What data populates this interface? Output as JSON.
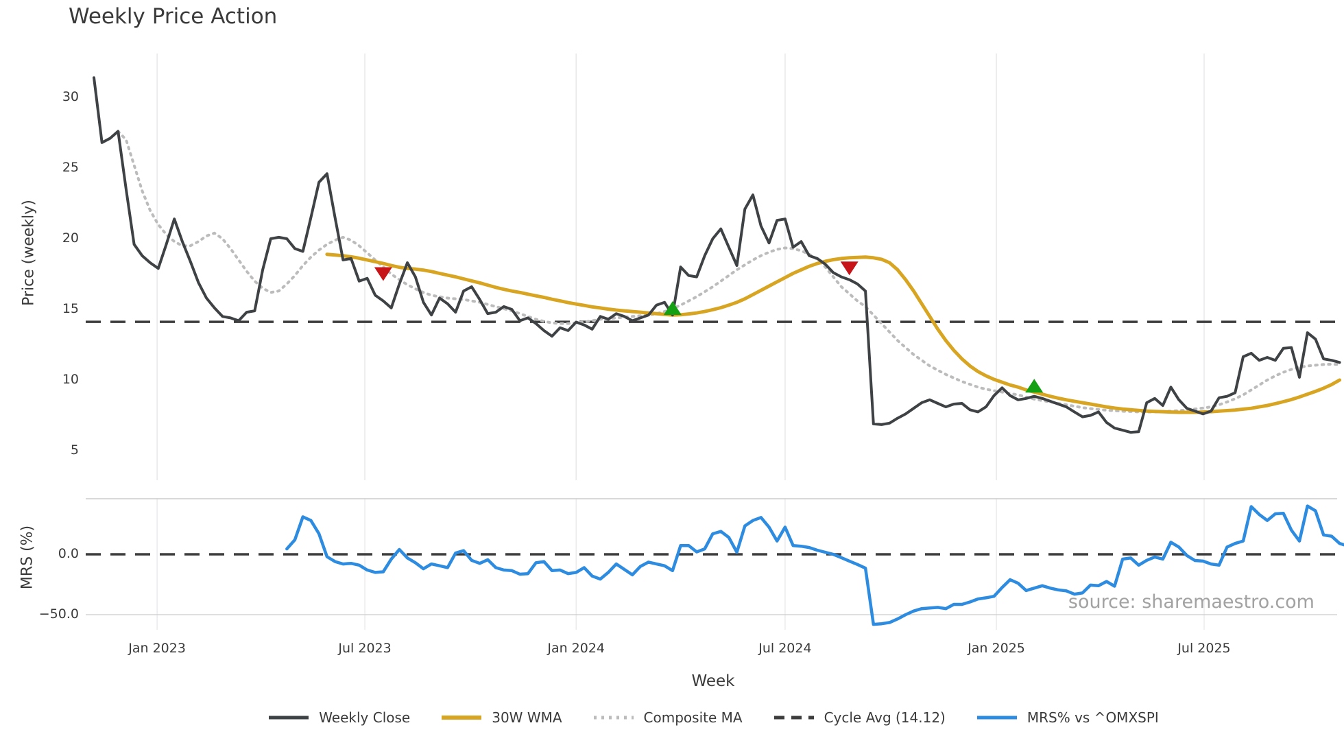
{
  "title": "Weekly Price Action",
  "source_note": "source: sharemaestro.com",
  "price_axis": {
    "label": "Price (weekly)",
    "ticks": [
      5,
      10,
      15,
      20,
      25,
      30
    ]
  },
  "mrs_axis": {
    "label": "MRS (%)",
    "ticks": [
      {
        "label": "0.0",
        "value": 0
      },
      {
        "label": "−50.0",
        "value": -50
      }
    ]
  },
  "x_axis": {
    "label": "Week",
    "ticks": [
      {
        "label": "Jan 2023",
        "week": 7.86
      },
      {
        "label": "Jul 2023",
        "week": 33.71
      },
      {
        "label": "Jan 2024",
        "week": 60.0
      },
      {
        "label": "Jul 2024",
        "week": 86.0
      },
      {
        "label": "Jan 2025",
        "week": 112.29
      },
      {
        "label": "Jul 2025",
        "week": 138.14
      }
    ]
  },
  "legend": [
    {
      "label": "Weekly Close",
      "swatch": "solid-dark"
    },
    {
      "label": "30W WMA",
      "swatch": "solid-gold"
    },
    {
      "label": "Composite MA",
      "swatch": "dotted-gray"
    },
    {
      "label": "Cycle Avg (14.12)",
      "swatch": "dashed-dark"
    },
    {
      "label": "MRS% vs ^OMXSPI",
      "swatch": "solid-blue"
    }
  ],
  "colors": {
    "close": "#3f4245",
    "wma30": "#d7a521",
    "composite": "#bcbcbc",
    "cycle_avg": "#3d3d3d",
    "mrs": "#2d8ce0",
    "sell_marker": "#c61418",
    "buy_marker": "#13A013",
    "grid": "#e9e9ec",
    "panel_line": "#cccccc",
    "tick_text": "#3a3a3a",
    "source_text": "#a2a2a2"
  },
  "chart_data": {
    "type": "line",
    "title": "Weekly Price Action",
    "xlabel": "Week",
    "interval": "weekly",
    "start_date": "2022-11-07",
    "weeks_total": 156,
    "grid": "vertical-only",
    "legend_position": "bottom-center",
    "panels": [
      {
        "name": "price",
        "ylabel": "Price (weekly)",
        "ylim": [
          4.2,
          32.5
        ],
        "yticks": [
          5,
          10,
          15,
          20,
          25,
          30
        ],
        "cycle_avg_value": 14.12,
        "series": [
          {
            "name": "Weekly Close",
            "style": "solid",
            "start_week": 0,
            "values": [
              31.4,
              26.8,
              27.1,
              27.6,
              23.5,
              19.6,
              18.8,
              18.3,
              17.9,
              19.6,
              21.4,
              19.8,
              18.4,
              16.9,
              15.8,
              15.1,
              14.5,
              14.4,
              14.2,
              14.8,
              14.9,
              17.8,
              20.0,
              20.1,
              20.0,
              19.3,
              19.1,
              21.5,
              24.0,
              24.6,
              21.5,
              18.5,
              18.6,
              17.0,
              17.2,
              16.0,
              15.6,
              15.1,
              16.8,
              18.3,
              17.3,
              15.5,
              14.6,
              15.8,
              15.4,
              14.8,
              16.3,
              16.6,
              15.7,
              14.7,
              14.8,
              15.2,
              15.0,
              14.2,
              14.4,
              14.0,
              13.5,
              13.1,
              13.7,
              13.5,
              14.1,
              13.9,
              13.6,
              14.5,
              14.3,
              14.7,
              14.5,
              14.2,
              14.4,
              14.6,
              15.3,
              15.5,
              14.6,
              18.0,
              17.4,
              17.3,
              18.8,
              20.0,
              20.7,
              19.4,
              18.1,
              22.1,
              23.1,
              20.9,
              19.7,
              21.3,
              21.4,
              19.4,
              19.8,
              18.8,
              18.6,
              18.2,
              17.6,
              17.3,
              17.1,
              16.8,
              16.3,
              6.9,
              6.85,
              6.95,
              7.3,
              7.6,
              8.0,
              8.4,
              8.6,
              8.35,
              8.1,
              8.3,
              8.35,
              7.9,
              7.75,
              8.1,
              8.9,
              9.45,
              8.9,
              8.6,
              8.7,
              8.85,
              8.7,
              8.5,
              8.3,
              8.1,
              7.75,
              7.4,
              7.5,
              7.75,
              7.0,
              6.6,
              6.45,
              6.3,
              6.35,
              8.4,
              8.7,
              8.2,
              9.5,
              8.6,
              8.0,
              7.8,
              7.6,
              7.8,
              8.75,
              8.85,
              9.1,
              11.65,
              11.9,
              11.4,
              11.6,
              11.4,
              12.25,
              12.3,
              10.2,
              13.35,
              12.9,
              11.5,
              11.4,
              11.25
            ]
          },
          {
            "name": "30W WMA",
            "style": "solid",
            "start_week": 29,
            "values": [
              18.9,
              18.85,
              18.8,
              18.72,
              18.62,
              18.5,
              18.38,
              18.25,
              18.1,
              17.98,
              17.9,
              17.85,
              17.78,
              17.68,
              17.55,
              17.42,
              17.3,
              17.16,
              17.02,
              16.88,
              16.72,
              16.56,
              16.42,
              16.3,
              16.2,
              16.08,
              15.96,
              15.85,
              15.72,
              15.6,
              15.48,
              15.38,
              15.28,
              15.18,
              15.1,
              15.02,
              14.95,
              14.9,
              14.85,
              14.8,
              14.75,
              14.7,
              14.65,
              14.6,
              14.62,
              14.68,
              14.75,
              14.85,
              14.98,
              15.12,
              15.3,
              15.5,
              15.75,
              16.05,
              16.35,
              16.65,
              16.95,
              17.25,
              17.55,
              17.8,
              18.05,
              18.25,
              18.4,
              18.52,
              18.6,
              18.65,
              18.68,
              18.7,
              18.65,
              18.55,
              18.3,
              17.8,
              17.1,
              16.3,
              15.4,
              14.5,
              13.6,
              12.8,
              12.1,
              11.5,
              11.0,
              10.6,
              10.3,
              10.05,
              9.85,
              9.65,
              9.5,
              9.3,
              9.15,
              9.0,
              8.85,
              8.72,
              8.6,
              8.5,
              8.4,
              8.3,
              8.2,
              8.1,
              8.02,
              7.95,
              7.9,
              7.85,
              7.8,
              7.78,
              7.76,
              7.74,
              7.72,
              7.72,
              7.72,
              7.74,
              7.76,
              7.8,
              7.84,
              7.88,
              7.94,
              8.0,
              8.1,
              8.2,
              8.33,
              8.47,
              8.62,
              8.8,
              9.0,
              9.2,
              9.42,
              9.68,
              10.0
            ]
          },
          {
            "name": "Composite MA",
            "style": "dotted",
            "start_week": 3,
            "values": [
              27.6,
              27.0,
              25.2,
              23.4,
              22.0,
              21.0,
              20.3,
              19.8,
              19.5,
              19.5,
              19.8,
              20.2,
              20.4,
              20.0,
              19.3,
              18.5,
              17.7,
              17.0,
              16.5,
              16.2,
              16.3,
              16.8,
              17.4,
              18.1,
              18.7,
              19.2,
              19.6,
              19.9,
              20.1,
              19.9,
              19.5,
              19.0,
              18.5,
              18.0,
              17.5,
              17.1,
              16.75,
              16.45,
              16.2,
              16.0,
              15.9,
              15.8,
              15.75,
              15.7,
              15.6,
              15.5,
              15.35,
              15.2,
              15.05,
              14.9,
              14.7,
              14.5,
              14.3,
              14.15,
              14.05,
              14.0,
              14.0,
              14.05,
              14.1,
              14.2,
              14.3,
              14.35,
              14.4,
              14.45,
              14.5,
              14.55,
              14.6,
              14.7,
              14.85,
              15.05,
              15.3,
              15.6,
              15.9,
              16.25,
              16.6,
              17.0,
              17.4,
              17.8,
              18.15,
              18.5,
              18.8,
              19.05,
              19.25,
              19.35,
              19.3,
              19.15,
              18.9,
              18.55,
              18.0,
              17.3,
              16.6,
              16.1,
              15.6,
              15.2,
              14.6,
              14.0,
              13.4,
              12.8,
              12.3,
              11.8,
              11.4,
              11.0,
              10.7,
              10.4,
              10.15,
              9.9,
              9.7,
              9.5,
              9.35,
              9.25,
              9.15,
              9.05,
              8.95,
              8.8,
              8.65,
              8.55,
              8.45,
              8.35,
              8.25,
              8.15,
              8.05,
              7.98,
              7.92,
              7.87,
              7.83,
              7.79,
              7.77,
              7.75,
              7.74,
              7.75,
              7.77,
              7.8,
              7.84,
              7.89,
              7.95,
              8.02,
              8.1,
              8.25,
              8.45,
              8.68,
              8.95,
              9.3,
              9.65,
              10.0,
              10.3,
              10.55,
              10.75,
              10.9,
              11.0,
              11.05,
              11.1,
              11.12,
              11.1
            ]
          }
        ]
      },
      {
        "name": "mrs",
        "ylabel": "MRS (%)",
        "ylim": [
          -62,
          46
        ],
        "yticks": [
          0,
          -50
        ],
        "series": [
          {
            "name": "MRS% vs ^OMXSPI",
            "style": "solid",
            "start_week": 24,
            "values": [
              4.5,
              12,
              31,
              28,
              17,
              -2,
              -6,
              -8,
              -7.5,
              -9,
              -13,
              -15,
              -14.5,
              -4,
              4,
              -3,
              -7,
              -12,
              -8,
              -9.5,
              -11,
              1,
              3,
              -5,
              -7.5,
              -4.5,
              -11,
              -13,
              -13.5,
              -16.5,
              -16,
              -7,
              -6,
              -13.5,
              -13,
              -16,
              -15,
              -11,
              -18,
              -20.5,
              -15,
              -8,
              -12.5,
              -17,
              -10,
              -6.5,
              -8,
              -9.5,
              -13.5,
              7.3,
              7.3,
              2,
              4.5,
              17,
              19,
              14,
              1.7,
              23.5,
              28,
              30.5,
              22.5,
              11,
              22.5,
              7.3,
              6.7,
              5.6,
              3.4,
              1.7,
              0,
              -2.8,
              -5.6,
              -8.4,
              -11.5,
              -58,
              -57.5,
              -56.5,
              -53.5,
              -50,
              -47,
              -45,
              -44.5,
              -44,
              -45,
              -41.5,
              -41.5,
              -39.5,
              -37,
              -36,
              -34.8,
              -27.5,
              -21,
              -24,
              -30,
              -28,
              -26,
              -28,
              -29.5,
              -30.3,
              -33,
              -32,
              -25.5,
              -26,
              -22.5,
              -26.4,
              -4,
              -3,
              -9,
              -5,
              -2.2,
              -4,
              10,
              6,
              -1,
              -5.1,
              -5.6,
              -8,
              -9,
              6,
              9,
              11,
              39.5,
              33,
              28,
              33.5,
              34,
              20,
              11,
              40,
              36,
              16,
              15,
              9,
              7
            ]
          }
        ]
      }
    ],
    "signals": {
      "sell": [
        {
          "date": "2023-07-17",
          "price": 17.5
        },
        {
          "date": "2024-08-26",
          "price": 17.9
        }
      ],
      "buy": [
        {
          "date": "2024-03-25",
          "price": 15.1
        },
        {
          "date": "2025-02-03",
          "price": 9.6
        }
      ]
    }
  }
}
